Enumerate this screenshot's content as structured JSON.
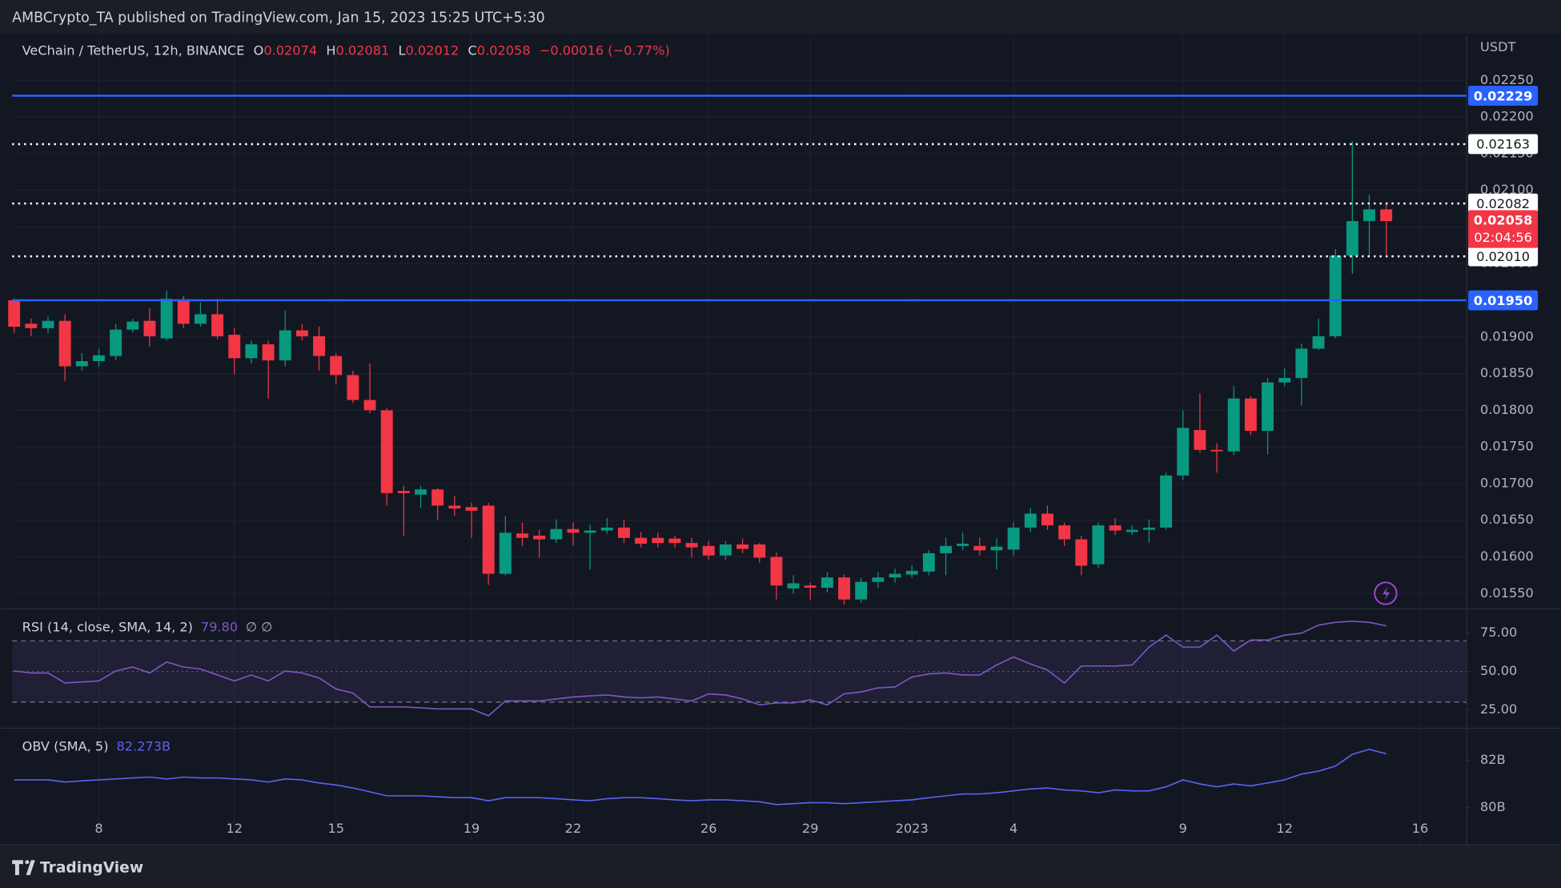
{
  "header": {
    "text": "AMBCrypto_TA published on TradingView.com, Jan 15, 2023 15:25 UTC+5:30"
  },
  "footer": {
    "brand": "TradingView"
  },
  "chart_data": [
    {
      "type": "candlestick",
      "title": "VeChain / TetherUS, 12h, BINANCE",
      "legend": [
        {
          "key": "O",
          "value": "0.02074"
        },
        {
          "key": "H",
          "value": "0.02081"
        },
        {
          "key": "L",
          "value": "0.02012"
        },
        {
          "key": "C",
          "value": "0.02058"
        }
      ],
      "change": "−0.00016 (−0.77%)",
      "axis_unit": "USDT",
      "categories": [
        null,
        null,
        null,
        null,
        null,
        "8",
        null,
        null,
        null,
        null,
        null,
        null,
        null,
        "12",
        null,
        null,
        null,
        null,
        null,
        "15",
        null,
        null,
        null,
        null,
        null,
        null,
        null,
        "19",
        null,
        null,
        null,
        null,
        null,
        "22",
        null,
        null,
        null,
        null,
        null,
        null,
        null,
        "26",
        null,
        null,
        null,
        null,
        null,
        "29",
        null,
        null,
        null,
        null,
        null,
        "2023",
        null,
        null,
        null,
        null,
        null,
        "4",
        null,
        null,
        null,
        null,
        null,
        null,
        null,
        null,
        null,
        "9",
        null,
        null,
        null,
        null,
        null,
        "12",
        null,
        null,
        null,
        null,
        null,
        null,
        null,
        "16"
      ],
      "open": [
        0.0195,
        0.01918,
        0.01912,
        0.01922,
        0.0186,
        0.01867,
        0.01874,
        0.0191,
        0.01922,
        0.01898,
        0.0195,
        0.01918,
        0.01931,
        0.01903,
        0.01871,
        0.0189,
        0.01868,
        0.01909,
        0.01901,
        0.01874,
        0.01848,
        0.01814,
        0.018,
        0.0169,
        0.01685,
        0.01692,
        0.0167,
        0.01668,
        0.0167,
        0.01577,
        0.01632,
        0.01629,
        0.01624,
        0.01638,
        0.01633,
        0.01636,
        0.0164,
        0.01626,
        0.01626,
        0.01625,
        0.01619,
        0.01615,
        0.01602,
        0.01617,
        0.01617,
        0.016,
        0.01557,
        0.01561,
        0.01558,
        0.01572,
        0.01542,
        0.01566,
        0.01572,
        0.01576,
        0.0158,
        0.01605,
        0.01615,
        0.01615,
        0.01609,
        0.0161,
        0.0164,
        0.01659,
        0.01643,
        0.01624,
        0.0159,
        0.01643,
        0.01634,
        0.01637,
        0.0164,
        0.01711,
        0.01773,
        0.01746,
        0.01744,
        0.01816,
        0.01772,
        0.01838,
        0.01844,
        0.01884,
        0.01901,
        0.02011,
        0.02058,
        0.02074,
        null,
        null
      ],
      "high": [
        0.01952,
        0.01925,
        0.01928,
        0.01931,
        0.01878,
        0.01884,
        0.01918,
        0.01925,
        0.01939,
        0.01963,
        0.01956,
        0.01947,
        0.01952,
        0.01912,
        0.01895,
        0.01895,
        0.01936,
        0.01918,
        0.01914,
        0.01878,
        0.01854,
        0.01864,
        0.01803,
        0.01697,
        0.01697,
        0.01694,
        0.01683,
        0.01674,
        0.01674,
        0.01656,
        0.01647,
        0.01637,
        0.01651,
        0.01647,
        0.01644,
        0.01653,
        0.01651,
        0.01634,
        0.01633,
        0.01629,
        0.01626,
        0.01622,
        0.01622,
        0.01625,
        0.01619,
        0.01606,
        0.01575,
        0.01565,
        0.01579,
        0.01576,
        0.01572,
        0.01579,
        0.01584,
        0.01588,
        0.01609,
        0.01626,
        0.01633,
        0.01626,
        0.01625,
        0.01648,
        0.01667,
        0.0167,
        0.01647,
        0.01629,
        0.01647,
        0.01653,
        0.01643,
        0.01651,
        0.01715,
        0.018,
        0.01823,
        0.01755,
        0.01833,
        0.01819,
        0.01844,
        0.01857,
        0.01891,
        0.01925,
        0.0202,
        0.02167,
        0.02094,
        0.02081,
        null,
        null
      ],
      "low": [
        0.01905,
        0.01901,
        0.01905,
        0.0184,
        0.01854,
        0.0186,
        0.01868,
        0.01906,
        0.01887,
        0.01895,
        0.01912,
        0.01914,
        0.01897,
        0.01849,
        0.01864,
        0.01816,
        0.0186,
        0.01895,
        0.01854,
        0.01836,
        0.0181,
        0.01796,
        0.0167,
        0.01629,
        0.01667,
        0.01651,
        0.01656,
        0.01626,
        0.01562,
        0.01575,
        0.01615,
        0.01599,
        0.01619,
        0.01615,
        0.01583,
        0.01632,
        0.01619,
        0.01613,
        0.01613,
        0.01613,
        0.01599,
        0.01596,
        0.01596,
        0.01605,
        0.01592,
        0.01542,
        0.0155,
        0.01541,
        0.01552,
        0.01535,
        0.01537,
        0.01558,
        0.01565,
        0.01572,
        0.01575,
        0.01575,
        0.01609,
        0.01602,
        0.01583,
        0.01602,
        0.01634,
        0.01637,
        0.01615,
        0.01575,
        0.01585,
        0.0163,
        0.0163,
        0.01619,
        0.01637,
        0.01705,
        0.01742,
        0.01715,
        0.01739,
        0.01766,
        0.0174,
        0.01833,
        0.01806,
        0.01882,
        0.01898,
        0.01986,
        0.0201,
        0.02012,
        null,
        null
      ],
      "close": [
        0.01914,
        0.01912,
        0.01922,
        0.0186,
        0.01867,
        0.01875,
        0.0191,
        0.01921,
        0.01901,
        0.01952,
        0.01918,
        0.01931,
        0.01901,
        0.01871,
        0.0189,
        0.01868,
        0.01909,
        0.01901,
        0.01874,
        0.01848,
        0.01814,
        0.018,
        0.01687,
        0.01687,
        0.01692,
        0.0167,
        0.01666,
        0.01663,
        0.01577,
        0.01633,
        0.01626,
        0.01624,
        0.01638,
        0.01633,
        0.01636,
        0.0164,
        0.01626,
        0.01618,
        0.01619,
        0.01619,
        0.01613,
        0.01602,
        0.01617,
        0.01611,
        0.01599,
        0.01561,
        0.01564,
        0.01558,
        0.01572,
        0.01542,
        0.01566,
        0.01572,
        0.01577,
        0.01581,
        0.01605,
        0.01615,
        0.01618,
        0.01609,
        0.01614,
        0.0164,
        0.01659,
        0.01643,
        0.01624,
        0.01588,
        0.01643,
        0.01636,
        0.01637,
        0.0164,
        0.01711,
        0.01776,
        0.01746,
        0.01744,
        0.01816,
        0.01772,
        0.01838,
        0.01844,
        0.01884,
        0.01901,
        0.02011,
        0.02058,
        0.02074,
        0.02058,
        null,
        null
      ],
      "up_color": "#089981",
      "down_color": "#f23645",
      "ylim": [
        0.0153,
        0.02312
      ],
      "yticks": [
        {
          "value": 0.0225,
          "label": "0.02250"
        },
        {
          "value": 0.022,
          "label": "0.02200"
        },
        {
          "value": 0.0215,
          "label": "0.02150"
        },
        {
          "value": 0.021,
          "label": "0.02100"
        },
        {
          "value": 0.0205,
          "label": "0.02050"
        },
        {
          "value": 0.02,
          "label": "0.02000"
        },
        {
          "value": 0.0195,
          "label": "0.01950"
        },
        {
          "value": 0.019,
          "label": "0.01900"
        },
        {
          "value": 0.0185,
          "label": "0.01850"
        },
        {
          "value": 0.018,
          "label": "0.01800"
        },
        {
          "value": 0.0175,
          "label": "0.01750"
        },
        {
          "value": 0.017,
          "label": "0.01700"
        },
        {
          "value": 0.0165,
          "label": "0.01650"
        },
        {
          "value": 0.016,
          "label": "0.01600"
        },
        {
          "value": 0.0155,
          "label": "0.01550"
        }
      ],
      "levels": [
        {
          "value": 0.02229,
          "label": "0.02229",
          "color": "#2962ff",
          "style": "solid"
        },
        {
          "value": 0.02163,
          "label": "0.02163",
          "color": "#ffffff",
          "style": "dotted"
        },
        {
          "value": 0.02082,
          "label": "0.02082",
          "color": "#ffffff",
          "style": "dotted"
        },
        {
          "value": 0.0201,
          "label": "0.02010",
          "color": "#ffffff",
          "style": "dotted"
        },
        {
          "value": 0.0195,
          "label": "0.01950",
          "color": "#2962ff",
          "style": "solid"
        }
      ],
      "last_price": {
        "value": 0.02058,
        "label": "0.02058",
        "countdown": "02:04:56",
        "color": "#f23645"
      },
      "grid": true
    },
    {
      "type": "line",
      "title": "RSI (14, close, SMA, 14, 2)",
      "last_label": "79.80",
      "flags": "∅ ∅",
      "color": "#7e57c2",
      "values": [
        50.3,
        49.0,
        49.0,
        42.5,
        43.2,
        43.8,
        50.3,
        52.9,
        49.0,
        56.2,
        52.9,
        51.6,
        47.7,
        43.8,
        47.7,
        43.8,
        50.3,
        49.0,
        45.8,
        38.6,
        36.0,
        26.9,
        26.9,
        26.9,
        26.3,
        25.6,
        25.6,
        25.6,
        21.1,
        30.8,
        30.8,
        30.8,
        32.1,
        33.4,
        34.1,
        34.7,
        33.4,
        32.8,
        33.4,
        32.1,
        30.8,
        35.4,
        34.7,
        32.1,
        28.2,
        29.5,
        29.5,
        31.5,
        28.2,
        35.4,
        36.7,
        39.3,
        39.9,
        46.4,
        48.4,
        49.0,
        47.7,
        47.7,
        54.2,
        59.4,
        54.9,
        51.0,
        42.5,
        53.6,
        53.6,
        53.6,
        54.2,
        65.9,
        73.7,
        65.9,
        65.9,
        73.7,
        63.3,
        70.5,
        70.5,
        73.7,
        75.0,
        80.2,
        82.1,
        82.8,
        82.1,
        79.8,
        null,
        null
      ],
      "ylim": [
        13.3,
        90.6
      ],
      "yticks": [
        {
          "value": 75,
          "label": "75.00"
        },
        {
          "value": 50,
          "label": "50.00"
        },
        {
          "value": 25,
          "label": "25.00"
        }
      ],
      "band": [
        30,
        70
      ],
      "midline": 50
    },
    {
      "type": "line",
      "title": "OBV (SMA, 5)",
      "last_label": "82.273B",
      "color": "#5b63f0",
      "values": [
        81.17,
        81.17,
        81.17,
        81.08,
        81.13,
        81.17,
        81.21,
        81.25,
        81.29,
        81.21,
        81.29,
        81.25,
        81.25,
        81.21,
        81.17,
        81.08,
        81.21,
        81.17,
        81.04,
        80.96,
        80.83,
        80.67,
        80.5,
        80.5,
        80.5,
        80.46,
        80.42,
        80.42,
        80.29,
        80.42,
        80.42,
        80.42,
        80.38,
        80.33,
        80.29,
        80.38,
        80.42,
        80.42,
        80.38,
        80.33,
        80.29,
        80.33,
        80.33,
        80.29,
        80.25,
        80.13,
        80.17,
        80.21,
        80.21,
        80.17,
        80.21,
        80.25,
        80.29,
        80.33,
        80.42,
        80.5,
        80.58,
        80.58,
        80.63,
        80.71,
        80.79,
        80.83,
        80.75,
        80.71,
        80.63,
        80.75,
        80.71,
        80.71,
        80.88,
        81.17,
        81.0,
        80.88,
        81.0,
        80.92,
        81.04,
        81.17,
        81.42,
        81.54,
        81.75,
        82.25,
        82.46,
        82.273,
        null,
        null
      ],
      "ylim": [
        78.46,
        83.33
      ],
      "yticks": [
        {
          "value": 82,
          "label": "82B"
        },
        {
          "value": 80,
          "label": "80B"
        }
      ]
    }
  ]
}
